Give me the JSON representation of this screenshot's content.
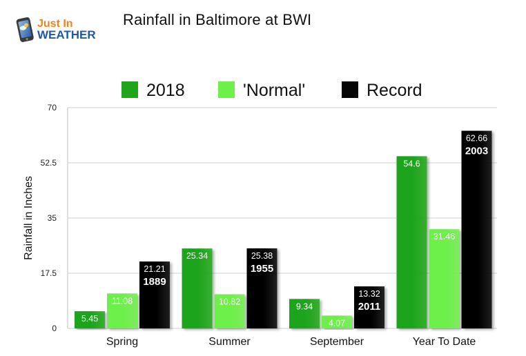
{
  "logo": {
    "line1": "Just In",
    "line2": "WEATHER"
  },
  "colors": {
    "series_2018": "#1fa51a",
    "series_normal": "#6ef04b",
    "series_record": "#050505",
    "grid": "#cfcfcf",
    "logo_orange": "#f0821e",
    "logo_blue": "#1c5aa8"
  },
  "chart_data": {
    "type": "bar",
    "title": "Rainfall in Baltimore at BWI",
    "xlabel": "",
    "ylabel": "Rainfall in Inches",
    "ylim": [
      0,
      70
    ],
    "yticks": [
      "0",
      "17.5",
      "35",
      "52.5",
      "70"
    ],
    "ytick_values": [
      0,
      17.5,
      35,
      52.5,
      70
    ],
    "grid": true,
    "legend_position": "top",
    "categories": [
      "Spring",
      "Summer",
      "September",
      "Year To Date"
    ],
    "series": [
      {
        "name": "2018",
        "values": [
          5.45,
          25.34,
          9.34,
          54.6
        ],
        "labels": [
          "5.45",
          "25.34",
          "9.34",
          "54.6"
        ]
      },
      {
        "name": "'Normal'",
        "values": [
          11.08,
          10.82,
          4.07,
          31.46
        ],
        "labels": [
          "11.08",
          "10.82",
          "4.07",
          "31.46"
        ]
      },
      {
        "name": "Record",
        "values": [
          21.21,
          25.38,
          13.32,
          62.66
        ],
        "labels": [
          "21.21",
          "25.38",
          "13.32",
          "62.66"
        ],
        "years": [
          "1889",
          "1955",
          "2011",
          "2003"
        ]
      }
    ]
  }
}
